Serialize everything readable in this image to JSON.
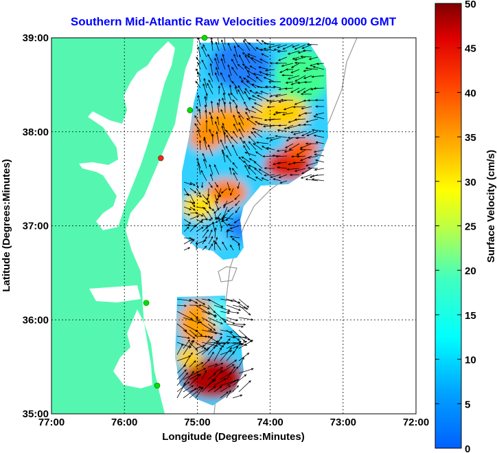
{
  "title": "Southern Mid-Atlantic Raw Velocities 2009/12/04 0000 GMT",
  "xlabel": "Longitude (Degrees:Minutes)",
  "ylabel": "Latitude (Degrees:Minutes)",
  "colorbar": {
    "label": "Surface Velocity (cm/s)",
    "ticks": [
      "0",
      "5",
      "10",
      "15",
      "20",
      "25",
      "30",
      "35",
      "40",
      "45",
      "50"
    ],
    "range": [
      0,
      50
    ],
    "colormap": "jet"
  },
  "axes": {
    "xticks": [
      "77:00",
      "76:00",
      "75:00",
      "74:00",
      "73:00",
      "72:00"
    ],
    "yticks": [
      "39:00",
      "38:00",
      "37:00",
      "36:00",
      "35:00"
    ],
    "xlim": [
      -77,
      -72
    ],
    "ylim": [
      35,
      39
    ],
    "grid": true
  },
  "colors": {
    "land": "#55f7b0",
    "title": "#0000ff",
    "station_ok": "#00e000",
    "station_alert": "#ff2020",
    "arrow": "#000000",
    "bathymetry": "#999999"
  },
  "stations": [
    {
      "lon": -74.9,
      "lat": 39.0,
      "status": "ok"
    },
    {
      "lon": -75.1,
      "lat": 38.23,
      "status": "ok"
    },
    {
      "lon": -75.5,
      "lat": 37.72,
      "status": "alert"
    },
    {
      "lon": -75.7,
      "lat": 36.18,
      "status": "ok"
    },
    {
      "lon": -75.55,
      "lat": 35.3,
      "status": "ok"
    }
  ]
}
